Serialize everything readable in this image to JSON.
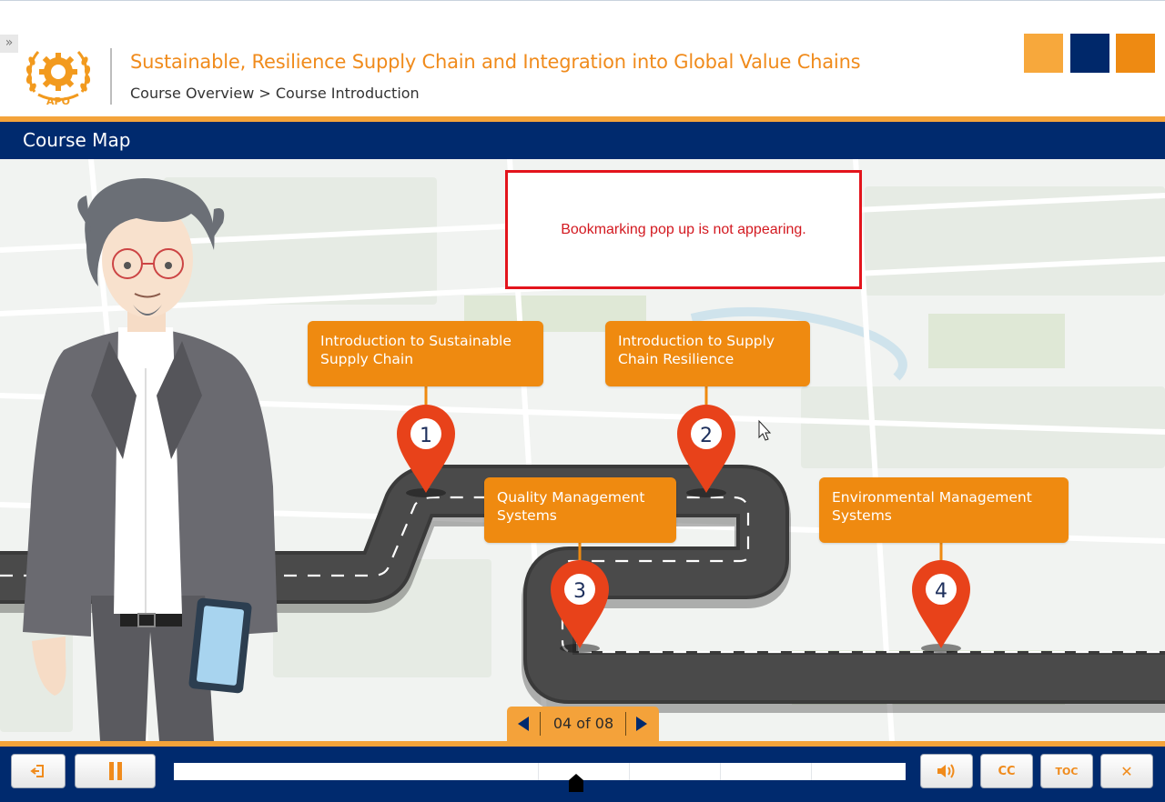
{
  "header": {
    "expand_label": "»",
    "logo_text": "APO",
    "title": "Sustainable, Resilience Supply Chain and Integration into Global Value Chains",
    "breadcrumb": "Course Overview > Course Introduction",
    "accent_colors": [
      "#f7a83c",
      "#00286a",
      "#ee8a12"
    ]
  },
  "titlebar": {
    "label": "Course Map"
  },
  "topics": [
    {
      "number": "1",
      "label_line1": "Introduction to Sustainable",
      "label_line2": "Supply Chain"
    },
    {
      "number": "2",
      "label_line1": "Introduction to Supply",
      "label_line2": "Chain Resilience"
    },
    {
      "number": "3",
      "label_line1": "Quality Management",
      "label_line2": "Systems"
    },
    {
      "number": "4",
      "label_line1": "Environmental Management",
      "label_line2": "Systems"
    }
  ],
  "annotation": {
    "text": "Bookmarking pop up is not appearing."
  },
  "pager": {
    "label": "04 of 08",
    "prev_icon": "triangle-left-icon",
    "next_icon": "triangle-right-icon"
  },
  "controls": {
    "exit_icon": "exit-icon",
    "pause_icon": "pause-icon",
    "volume_icon": "speaker-icon",
    "cc_label": "CC",
    "toc_label": "TOC",
    "close_label": "✕"
  },
  "progress": {
    "fraction": 0.55
  },
  "colors": {
    "brand_orange": "#ef8a10",
    "brand_navy": "#002a6e",
    "pin_red": "#e8421a",
    "alert_red": "#e3141c"
  }
}
